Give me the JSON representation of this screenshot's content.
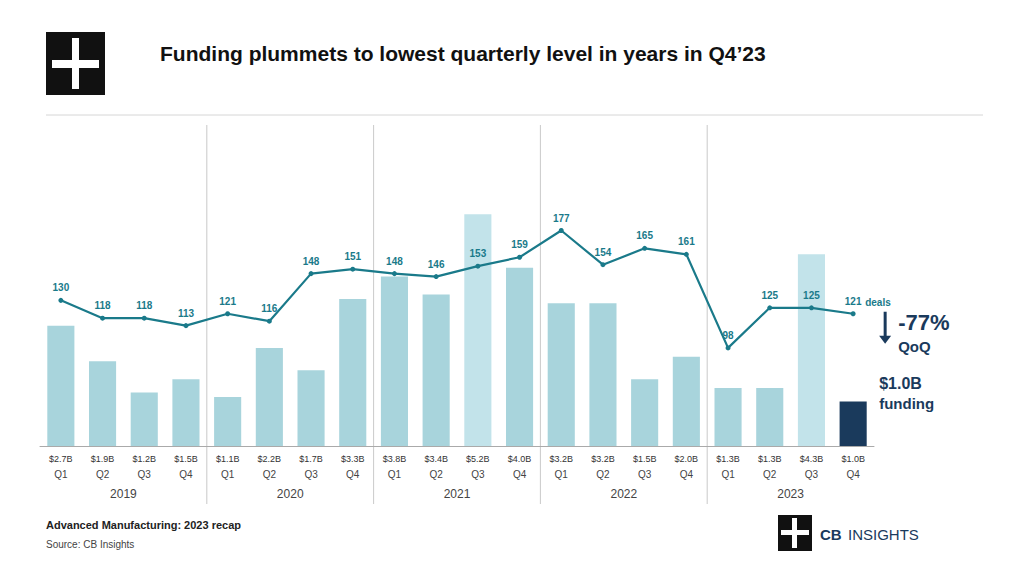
{
  "chart_data": {
    "type": "bar",
    "title": "Funding plummets to lowest quarterly level in years in Q4’23",
    "categories": [
      "Q1",
      "Q2",
      "Q3",
      "Q4",
      "Q1",
      "Q2",
      "Q3",
      "Q4",
      "Q1",
      "Q2",
      "Q3",
      "Q4",
      "Q1",
      "Q2",
      "Q3",
      "Q4",
      "Q1",
      "Q2",
      "Q3",
      "Q4"
    ],
    "group_labels": [
      "2019",
      "2020",
      "2021",
      "2022",
      "2023"
    ],
    "series": [
      {
        "type": "bar",
        "values": [
          2.7,
          1.9,
          1.2,
          1.5,
          1.1,
          2.2,
          1.7,
          3.3,
          3.8,
          3.4,
          5.2,
          4.0,
          3.2,
          3.2,
          1.5,
          2.0,
          1.3,
          1.3,
          4.3,
          1.0
        ],
        "value_labels": [
          "$2.7B",
          "$1.9B",
          "$1.2B",
          "$1.5B",
          "$1.1B",
          "$2.2B",
          "$1.7B",
          "$3.3B",
          "$3.8B",
          "$3.4B",
          "$5.2B",
          "$4.0B",
          "$3.2B",
          "$3.2B",
          "$1.5B",
          "$2.0B",
          "$1.3B",
          "$1.3B",
          "$4.3B",
          "$1.0B"
        ],
        "colors": [
          "#a8d4dc",
          "#a8d4dc",
          "#a8d4dc",
          "#a8d4dc",
          "#a8d4dc",
          "#a8d4dc",
          "#a8d4dc",
          "#a8d4dc",
          "#a8d4dc",
          "#a8d4dc",
          "#c2e3ea",
          "#a8d4dc",
          "#a8d4dc",
          "#a8d4dc",
          "#a8d4dc",
          "#a8d4dc",
          "#a8d4dc",
          "#a8d4dc",
          "#c2e3ea",
          "#1a3a5c"
        ]
      },
      {
        "type": "line",
        "axis": "y2",
        "color": "#1a7a8a",
        "marker": "circle",
        "data_labels": true,
        "values": [
          130,
          118,
          118,
          113,
          121,
          116,
          148,
          151,
          148,
          146,
          153,
          159,
          177,
          154,
          165,
          161,
          98,
          125,
          125,
          121
        ]
      }
    ],
    "ylim": [
      0,
      7.2
    ],
    "y2lim": [
      32,
      248
    ],
    "tick_labels": "x",
    "grid": false,
    "annotations": [
      "deals",
      "-77%",
      "QoQ",
      "$1.0B",
      "funding"
    ],
    "footer": [
      "Advanced Manufacturing: 2023 recap",
      "Source: CB Insights"
    ],
    "logo_text": [
      "CB",
      "INSIGHTS"
    ]
  }
}
